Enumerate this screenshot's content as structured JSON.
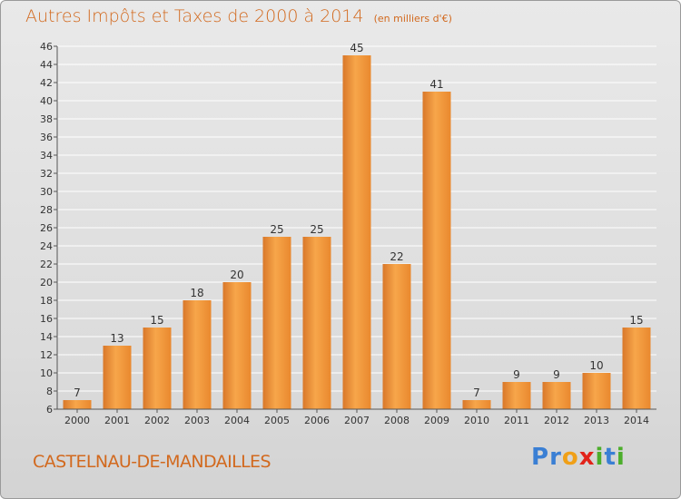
{
  "header": {
    "title": "Autres Impôts et Taxes de 2000 à 2014",
    "unit": "(en milliers d'€)"
  },
  "footer": {
    "commune": "CASTELNAU-DE-MANDAILLES",
    "logo": {
      "text": "Proxiti",
      "letters": [
        {
          "ch": "P",
          "color": "#3a7fd4"
        },
        {
          "ch": "r",
          "color": "#3a7fd4"
        },
        {
          "ch": "o",
          "color": "#f0a018"
        },
        {
          "ch": "x",
          "color": "#e2231a"
        },
        {
          "ch": "i",
          "color": "#4cae2b"
        },
        {
          "ch": "t",
          "color": "#3a7fd4"
        },
        {
          "ch": "i",
          "color": "#4cae2b"
        }
      ]
    }
  },
  "chart_data": {
    "type": "bar",
    "categories": [
      "2000",
      "2001",
      "2002",
      "2003",
      "2004",
      "2005",
      "2006",
      "2007",
      "2008",
      "2009",
      "2010",
      "2011",
      "2012",
      "2013",
      "2014"
    ],
    "values": [
      7,
      13,
      15,
      18,
      20,
      25,
      25,
      45,
      22,
      41,
      7,
      9,
      9,
      10,
      15
    ],
    "title": "Autres Impôts et Taxes de 2000 à 2014",
    "ylim": [
      6,
      46
    ],
    "yticks": [
      6,
      8,
      10,
      12,
      14,
      16,
      18,
      20,
      22,
      24,
      26,
      28,
      30,
      32,
      34,
      36,
      38,
      40,
      42,
      44,
      46
    ],
    "grid": true,
    "colors": {
      "bar": "#f29a3c",
      "bar_light": "#f7b060",
      "bar_dark": "#d9782a",
      "grid": "#ffffff",
      "axis": "#555555"
    }
  }
}
